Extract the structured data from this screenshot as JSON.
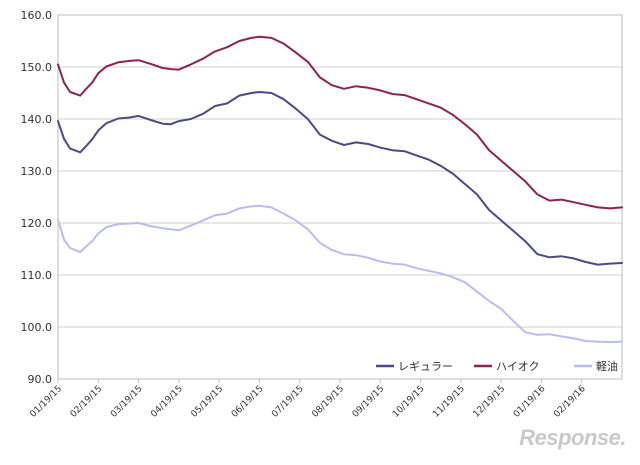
{
  "chart_data": {
    "type": "line",
    "title": "",
    "xlabel": "",
    "ylabel": "",
    "ylim": [
      90,
      160
    ],
    "yticks": [
      90,
      100,
      110,
      120,
      130,
      140,
      150,
      160
    ],
    "ytick_labels": [
      "90.0",
      "100.0",
      "110.0",
      "120.0",
      "130.0",
      "140.0",
      "150.0",
      "160.0"
    ],
    "x_tick_labels": [
      "01/19/15",
      "02/19/15",
      "03/19/15",
      "04/19/15",
      "05/19/15",
      "06/19/15",
      "07/19/15",
      "08/19/15",
      "09/19/15",
      "10/19/15",
      "11/19/15",
      "12/19/15",
      "01/19/16",
      "02/19/16"
    ],
    "x_range": [
      0,
      14
    ],
    "grid": "horizontal",
    "legend_position": "bottom-right",
    "series": [
      {
        "name": "レギュラー",
        "color": "#4a4b86",
        "x": [
          0,
          0.15,
          0.3,
          0.55,
          0.7,
          0.85,
          1,
          1.2,
          1.5,
          1.8,
          2,
          2.3,
          2.6,
          2.8,
          3,
          3.3,
          3.6,
          3.9,
          4.2,
          4.5,
          4.8,
          5,
          5.3,
          5.6,
          5.9,
          6.2,
          6.5,
          6.8,
          7.1,
          7.4,
          7.7,
          8,
          8.3,
          8.6,
          8.9,
          9.2,
          9.5,
          9.8,
          10.1,
          10.4,
          10.7,
          11,
          11.3,
          11.6,
          11.9,
          12.2,
          12.5,
          12.8,
          13.1,
          13.4,
          13.7,
          14
        ],
        "values": [
          139.6,
          136.2,
          134.3,
          133.6,
          134.8,
          136.1,
          137.8,
          139.2,
          140.1,
          140.3,
          140.6,
          139.8,
          139.1,
          139.0,
          139.6,
          140.0,
          141.0,
          142.5,
          143.0,
          144.5,
          145.0,
          145.2,
          145.0,
          143.8,
          142.0,
          140.0,
          137.0,
          135.8,
          135.0,
          135.5,
          135.2,
          134.5,
          134.0,
          133.8,
          133.0,
          132.2,
          131.0,
          129.5,
          127.5,
          125.5,
          122.5,
          120.5,
          118.5,
          116.5,
          114.0,
          113.4,
          113.6,
          113.2,
          112.5,
          112.0,
          112.2,
          112.3
        ]
      },
      {
        "name": "ハイオク",
        "color": "#8b2356",
        "x": [
          0,
          0.15,
          0.3,
          0.55,
          0.7,
          0.85,
          1,
          1.2,
          1.5,
          1.8,
          2,
          2.3,
          2.6,
          2.8,
          3,
          3.3,
          3.6,
          3.9,
          4.2,
          4.5,
          4.8,
          5,
          5.3,
          5.6,
          5.9,
          6.2,
          6.5,
          6.8,
          7.1,
          7.4,
          7.7,
          8,
          8.3,
          8.6,
          8.9,
          9.2,
          9.5,
          9.8,
          10.1,
          10.4,
          10.7,
          11,
          11.3,
          11.6,
          11.9,
          12.2,
          12.5,
          12.8,
          13.1,
          13.4,
          13.7,
          14
        ],
        "values": [
          150.5,
          147.0,
          145.2,
          144.5,
          145.8,
          147.0,
          148.8,
          150.1,
          150.9,
          151.2,
          151.3,
          150.6,
          149.8,
          149.6,
          149.5,
          150.5,
          151.6,
          153.0,
          153.8,
          155.0,
          155.6,
          155.8,
          155.6,
          154.5,
          152.8,
          151.0,
          148.0,
          146.5,
          145.8,
          146.3,
          146.0,
          145.5,
          144.8,
          144.6,
          143.8,
          143.0,
          142.2,
          140.8,
          139.0,
          137.0,
          134.0,
          132.0,
          130.0,
          128.0,
          125.5,
          124.3,
          124.5,
          124.0,
          123.5,
          123.0,
          122.8,
          123.0
        ]
      },
      {
        "name": "軽油",
        "color": "#b9bcf2",
        "x": [
          0,
          0.15,
          0.3,
          0.55,
          0.7,
          0.85,
          1,
          1.2,
          1.5,
          1.8,
          2,
          2.3,
          2.6,
          2.8,
          3,
          3.3,
          3.6,
          3.9,
          4.2,
          4.5,
          4.8,
          5,
          5.3,
          5.6,
          5.9,
          6.2,
          6.5,
          6.8,
          7.1,
          7.4,
          7.7,
          8,
          8.3,
          8.6,
          8.9,
          9.2,
          9.5,
          9.8,
          10.1,
          10.4,
          10.7,
          11,
          11.3,
          11.6,
          11.9,
          12.2,
          12.5,
          12.8,
          13.1,
          13.4,
          13.7,
          14
        ],
        "values": [
          120.6,
          116.8,
          115.2,
          114.4,
          115.5,
          116.5,
          118.0,
          119.2,
          119.8,
          119.9,
          120.0,
          119.4,
          119.0,
          118.8,
          118.6,
          119.5,
          120.5,
          121.5,
          121.8,
          122.8,
          123.2,
          123.3,
          123.0,
          121.8,
          120.5,
          118.8,
          116.2,
          114.8,
          114.0,
          113.8,
          113.3,
          112.6,
          112.2,
          112.0,
          111.3,
          110.8,
          110.3,
          109.6,
          108.6,
          106.8,
          105.0,
          103.5,
          101.2,
          99.0,
          98.5,
          98.6,
          98.2,
          97.8,
          97.3,
          97.2,
          97.1,
          97.2
        ]
      }
    ]
  },
  "watermark": "Response."
}
